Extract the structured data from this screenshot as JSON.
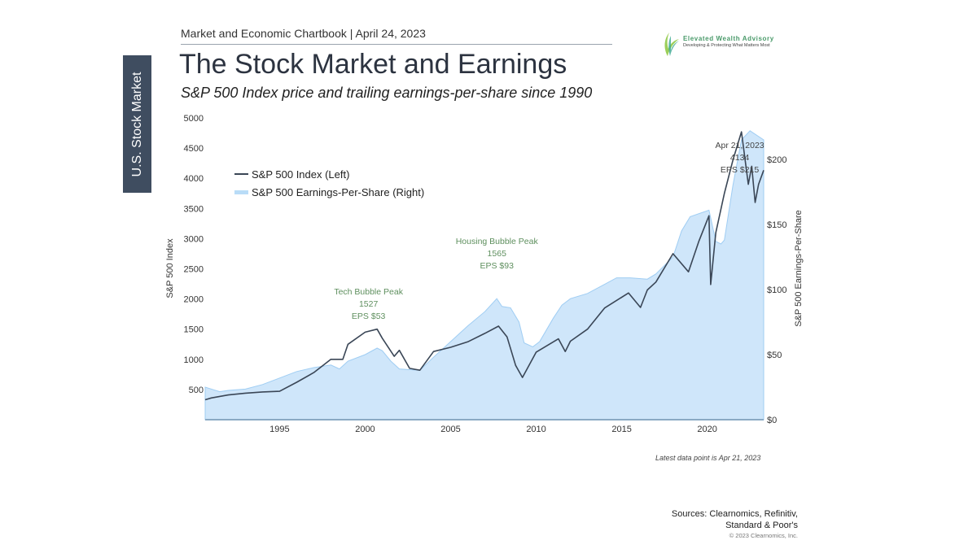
{
  "header": {
    "chartbook": "Market and Economic Chartbook | April 24, 2023",
    "title": "The Stock Market and Earnings",
    "subtitle": "S&P 500 Index price and trailing earnings-per-share since 1990",
    "section_tab": "U.S. Stock Market"
  },
  "logo": {
    "name": "Elevated Wealth Advisory",
    "tagline": "Developing & Protecting What Matters Most"
  },
  "footer": {
    "note": "Latest data point is Apr 21, 2023",
    "sources_line1": "Sources: Clearnomics, Refinitiv,",
    "sources_line2": "Standard & Poor's",
    "copyright": "© 2023 Clearnomics, Inc."
  },
  "colors": {
    "index_line": "#3a4656",
    "eps_fill": "#cfe6fa",
    "eps_edge": "#9fcdf3",
    "annotation": "#5e8f5e",
    "sidebar": "#3f4d60"
  },
  "chart_data": {
    "type": "line+area",
    "title": "",
    "xlabel": "",
    "ylabel_left": "S&P 500 Index",
    "ylabel_right": "S&P 500 Earnings-Per-Share",
    "xlim": [
      1990.65,
      2023.3
    ],
    "ylim_left": [
      0,
      5000
    ],
    "ylim_right": [
      0,
      230
    ],
    "x_ticks": [
      "1995",
      "2000",
      "2005",
      "2010",
      "2015",
      "2020"
    ],
    "y_ticks_left": [
      "500",
      "1000",
      "1500",
      "2000",
      "2500",
      "3000",
      "3500",
      "4000",
      "4500",
      "5000"
    ],
    "y_ticks_right": [
      "$0",
      "$50",
      "$100",
      "$150",
      "$200"
    ],
    "legend": {
      "position": "top-left",
      "entries": [
        "S&P 500 Index (Left)",
        "S&P 500 Earnings-Per-Share (Right)"
      ]
    },
    "series": [
      {
        "name": "S&P 500 Index (Left)",
        "type": "line",
        "axis": "left",
        "x": [
          1990.65,
          1991,
          1992,
          1993,
          1994,
          1995,
          1996,
          1997,
          1998,
          1998.7,
          1999,
          2000,
          2000.7,
          2001,
          2001.7,
          2002,
          2002.6,
          2003.2,
          2004,
          2005,
          2006,
          2007,
          2007.8,
          2008.3,
          2008.8,
          2009.2,
          2010,
          2011.3,
          2011.7,
          2012,
          2013,
          2014,
          2015.4,
          2016.1,
          2016.5,
          2017,
          2018,
          2018.9,
          2019.5,
          2020.1,
          2020.2,
          2020.5,
          2021,
          2021.5,
          2022,
          2022.4,
          2022.6,
          2022.8,
          2023,
          2023.3
        ],
        "y": [
          330,
          360,
          410,
          440,
          460,
          470,
          620,
          780,
          1000,
          1000,
          1250,
          1450,
          1500,
          1350,
          1050,
          1150,
          850,
          820,
          1130,
          1200,
          1290,
          1430,
          1550,
          1370,
          900,
          700,
          1120,
          1340,
          1130,
          1300,
          1500,
          1850,
          2100,
          1860,
          2150,
          2280,
          2750,
          2450,
          2950,
          3380,
          2240,
          3100,
          3750,
          4300,
          4770,
          3900,
          4200,
          3600,
          3900,
          4134
        ]
      },
      {
        "name": "S&P 500 Earnings-Per-Share (Right)",
        "type": "area",
        "axis": "right",
        "x": [
          1990.65,
          1991.5,
          1992,
          1993,
          1994,
          1995,
          1996,
          1997,
          1998,
          1998.5,
          1999,
          2000,
          2000.7,
          2001,
          2001.5,
          2002,
          2002.5,
          2003.2,
          2004,
          2005,
          2006,
          2007,
          2007.7,
          2008,
          2008.5,
          2009,
          2009.3,
          2009.8,
          2010.2,
          2011,
          2011.5,
          2012,
          2013,
          2014,
          2014.7,
          2015.5,
          2016.5,
          2017,
          2018,
          2018.5,
          2019,
          2020.1,
          2020.5,
          2020.8,
          2021,
          2021.5,
          2022,
          2022.5,
          2023.3
        ],
        "y": [
          25,
          21.5,
          22.5,
          23.5,
          27,
          32,
          37,
          40,
          42,
          39,
          45,
          50,
          55,
          53,
          45,
          39,
          38.5,
          38,
          48,
          60,
          72,
          83,
          93,
          87,
          86,
          75,
          59,
          56,
          60,
          78,
          88,
          93,
          97,
          104,
          109,
          109,
          108,
          112,
          125,
          145,
          156,
          161,
          137,
          135,
          138,
          180,
          215,
          222,
          215
        ]
      }
    ],
    "annotations": [
      {
        "lines": [
          "Tech Bubble Peak",
          "1527",
          "EPS $53"
        ],
        "x": 2000.2
      },
      {
        "lines": [
          "Housing Bubble Peak",
          "1565",
          "EPS $93"
        ],
        "x": 2007.7
      },
      {
        "lines": [
          "Apr 21, 2023",
          "4134",
          "EPS $215"
        ],
        "x": 2021.9
      }
    ]
  }
}
